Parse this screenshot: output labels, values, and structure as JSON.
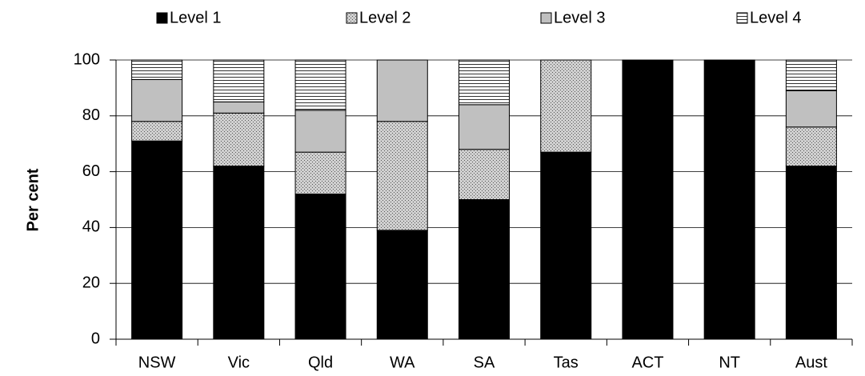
{
  "chart_data": {
    "type": "stacked_bar",
    "categories": [
      "NSW",
      "Vic",
      "Qld",
      "WA",
      "SA",
      "Tas",
      "ACT",
      "NT",
      "Aust"
    ],
    "y_label": "Per cent",
    "ylim": [
      0,
      100
    ],
    "yticks": [
      0,
      20,
      40,
      60,
      80,
      100
    ],
    "grid": true,
    "legend": "top",
    "series": [
      {
        "name": "Level 1",
        "color": "#000000",
        "pattern": "solid",
        "values": [
          71,
          62,
          52,
          39,
          50,
          67,
          100,
          100,
          62
        ]
      },
      {
        "name": "Level 2",
        "color": "#d0d0d0",
        "pattern": "dots",
        "values": [
          7,
          19,
          15,
          39,
          18,
          33,
          0,
          0,
          14
        ]
      },
      {
        "name": "Level 3",
        "color": "#c0c0c0",
        "pattern": "solid",
        "values": [
          15,
          4,
          15,
          22,
          16,
          0,
          0,
          0,
          13
        ]
      },
      {
        "name": "Level 4",
        "color": "#ffffff",
        "pattern": "hlines",
        "values": [
          7,
          15,
          18,
          0,
          16,
          0,
          0,
          0,
          11
        ]
      }
    ]
  }
}
